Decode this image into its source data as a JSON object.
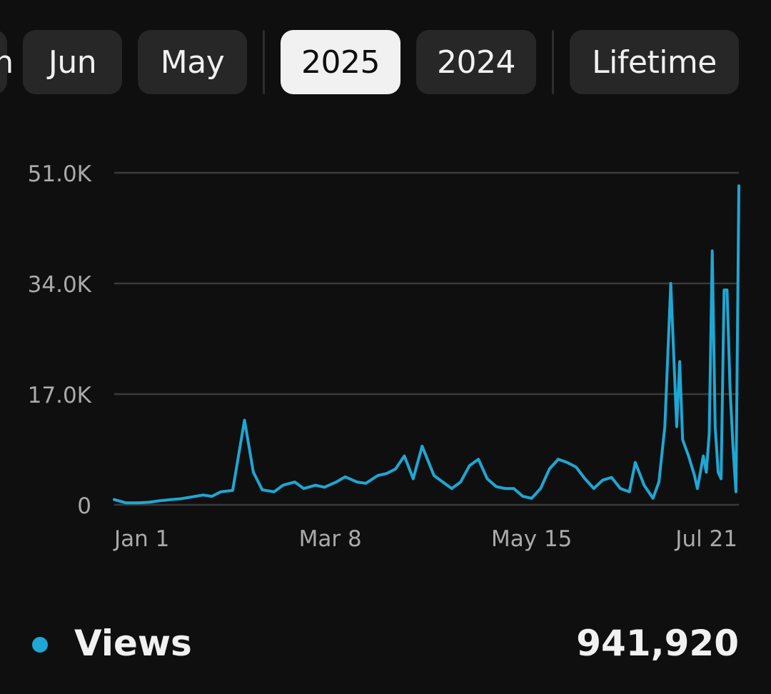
{
  "tabs": [
    {
      "label": "Jun",
      "active": false
    },
    {
      "label": "May",
      "active": false
    },
    {
      "label": "2025",
      "active": true
    },
    {
      "label": "2024",
      "active": false
    },
    {
      "label": "Lifetime",
      "active": false
    }
  ],
  "colors": {
    "series": "#1ea7d4",
    "grid": "#3a3a3a",
    "axis_text": "#aaaaaa",
    "active_chip": "#f1f1f1",
    "chip": "#272727"
  },
  "chart_data": {
    "type": "line",
    "title": "",
    "xlabel": "",
    "ylabel": "",
    "ylim": [
      0,
      51000
    ],
    "yticks": [
      0,
      17000,
      34000,
      51000
    ],
    "ytick_labels": [
      "0",
      "17.0K",
      "34.0K",
      "51.0K"
    ],
    "xtick_labels": [
      {
        "label": "Jan 1",
        "date": "2025-01-01"
      },
      {
        "label": "Mar 8",
        "date": "2025-03-08"
      },
      {
        "label": "May 15",
        "date": "2025-05-15"
      },
      {
        "label": "Jul 21",
        "date": "2025-07-21"
      }
    ],
    "grid": true,
    "x_start": "2024-12-25",
    "x_end": "2025-07-24",
    "series": [
      {
        "name": "Views",
        "points": [
          [
            "2024-12-25",
            800
          ],
          [
            "2024-12-29",
            300
          ],
          [
            "2025-01-02",
            300
          ],
          [
            "2025-01-06",
            400
          ],
          [
            "2025-01-09",
            600
          ],
          [
            "2025-01-13",
            800
          ],
          [
            "2025-01-16",
            900
          ],
          [
            "2025-01-20",
            1200
          ],
          [
            "2025-01-24",
            1500
          ],
          [
            "2025-01-27",
            1300
          ],
          [
            "2025-01-30",
            2000
          ],
          [
            "2025-02-03",
            2200
          ],
          [
            "2025-02-07",
            13000
          ],
          [
            "2025-02-10",
            5000
          ],
          [
            "2025-02-13",
            2300
          ],
          [
            "2025-02-17",
            2000
          ],
          [
            "2025-02-20",
            3000
          ],
          [
            "2025-02-24",
            3500
          ],
          [
            "2025-02-27",
            2500
          ],
          [
            "2025-03-03",
            3000
          ],
          [
            "2025-03-06",
            2700
          ],
          [
            "2025-03-10",
            3500
          ],
          [
            "2025-03-13",
            4300
          ],
          [
            "2025-03-17",
            3500
          ],
          [
            "2025-03-20",
            3300
          ],
          [
            "2025-03-24",
            4500
          ],
          [
            "2025-03-27",
            4800
          ],
          [
            "2025-03-30",
            5500
          ],
          [
            "2025-04-02",
            7500
          ],
          [
            "2025-04-05",
            4000
          ],
          [
            "2025-04-08",
            9000
          ],
          [
            "2025-04-12",
            4500
          ],
          [
            "2025-04-15",
            3500
          ],
          [
            "2025-04-18",
            2500
          ],
          [
            "2025-04-21",
            3500
          ],
          [
            "2025-04-24",
            6000
          ],
          [
            "2025-04-27",
            7000
          ],
          [
            "2025-04-30",
            4000
          ],
          [
            "2025-05-03",
            2800
          ],
          [
            "2025-05-06",
            2500
          ],
          [
            "2025-05-09",
            2500
          ],
          [
            "2025-05-12",
            1300
          ],
          [
            "2025-05-15",
            1000
          ],
          [
            "2025-05-18",
            2500
          ],
          [
            "2025-05-21",
            5500
          ],
          [
            "2025-05-24",
            7000
          ],
          [
            "2025-05-27",
            6500
          ],
          [
            "2025-05-30",
            5800
          ],
          [
            "2025-06-02",
            4000
          ],
          [
            "2025-06-05",
            2500
          ],
          [
            "2025-06-08",
            3800
          ],
          [
            "2025-06-11",
            4200
          ],
          [
            "2025-06-14",
            2500
          ],
          [
            "2025-06-17",
            2000
          ],
          [
            "2025-06-19",
            6500
          ],
          [
            "2025-06-22",
            3000
          ],
          [
            "2025-06-25",
            1000
          ],
          [
            "2025-06-27",
            3500
          ],
          [
            "2025-06-29",
            12000
          ],
          [
            "2025-07-01",
            34000
          ],
          [
            "2025-07-03",
            12000
          ],
          [
            "2025-07-04",
            22000
          ],
          [
            "2025-07-05",
            10000
          ],
          [
            "2025-07-07",
            7500
          ],
          [
            "2025-07-09",
            4500
          ],
          [
            "2025-07-10",
            2500
          ],
          [
            "2025-07-11",
            5000
          ],
          [
            "2025-07-12",
            7500
          ],
          [
            "2025-07-13",
            5000
          ],
          [
            "2025-07-14",
            11000
          ],
          [
            "2025-07-15",
            39000
          ],
          [
            "2025-07-16",
            12000
          ],
          [
            "2025-07-17",
            5000
          ],
          [
            "2025-07-18",
            4000
          ],
          [
            "2025-07-19",
            33000
          ],
          [
            "2025-07-20",
            33000
          ],
          [
            "2025-07-21",
            18000
          ],
          [
            "2025-07-22",
            9000
          ],
          [
            "2025-07-23",
            2000
          ],
          [
            "2025-07-24",
            49000
          ]
        ]
      }
    ]
  },
  "legend": {
    "label": "Views",
    "value": "941,920"
  }
}
